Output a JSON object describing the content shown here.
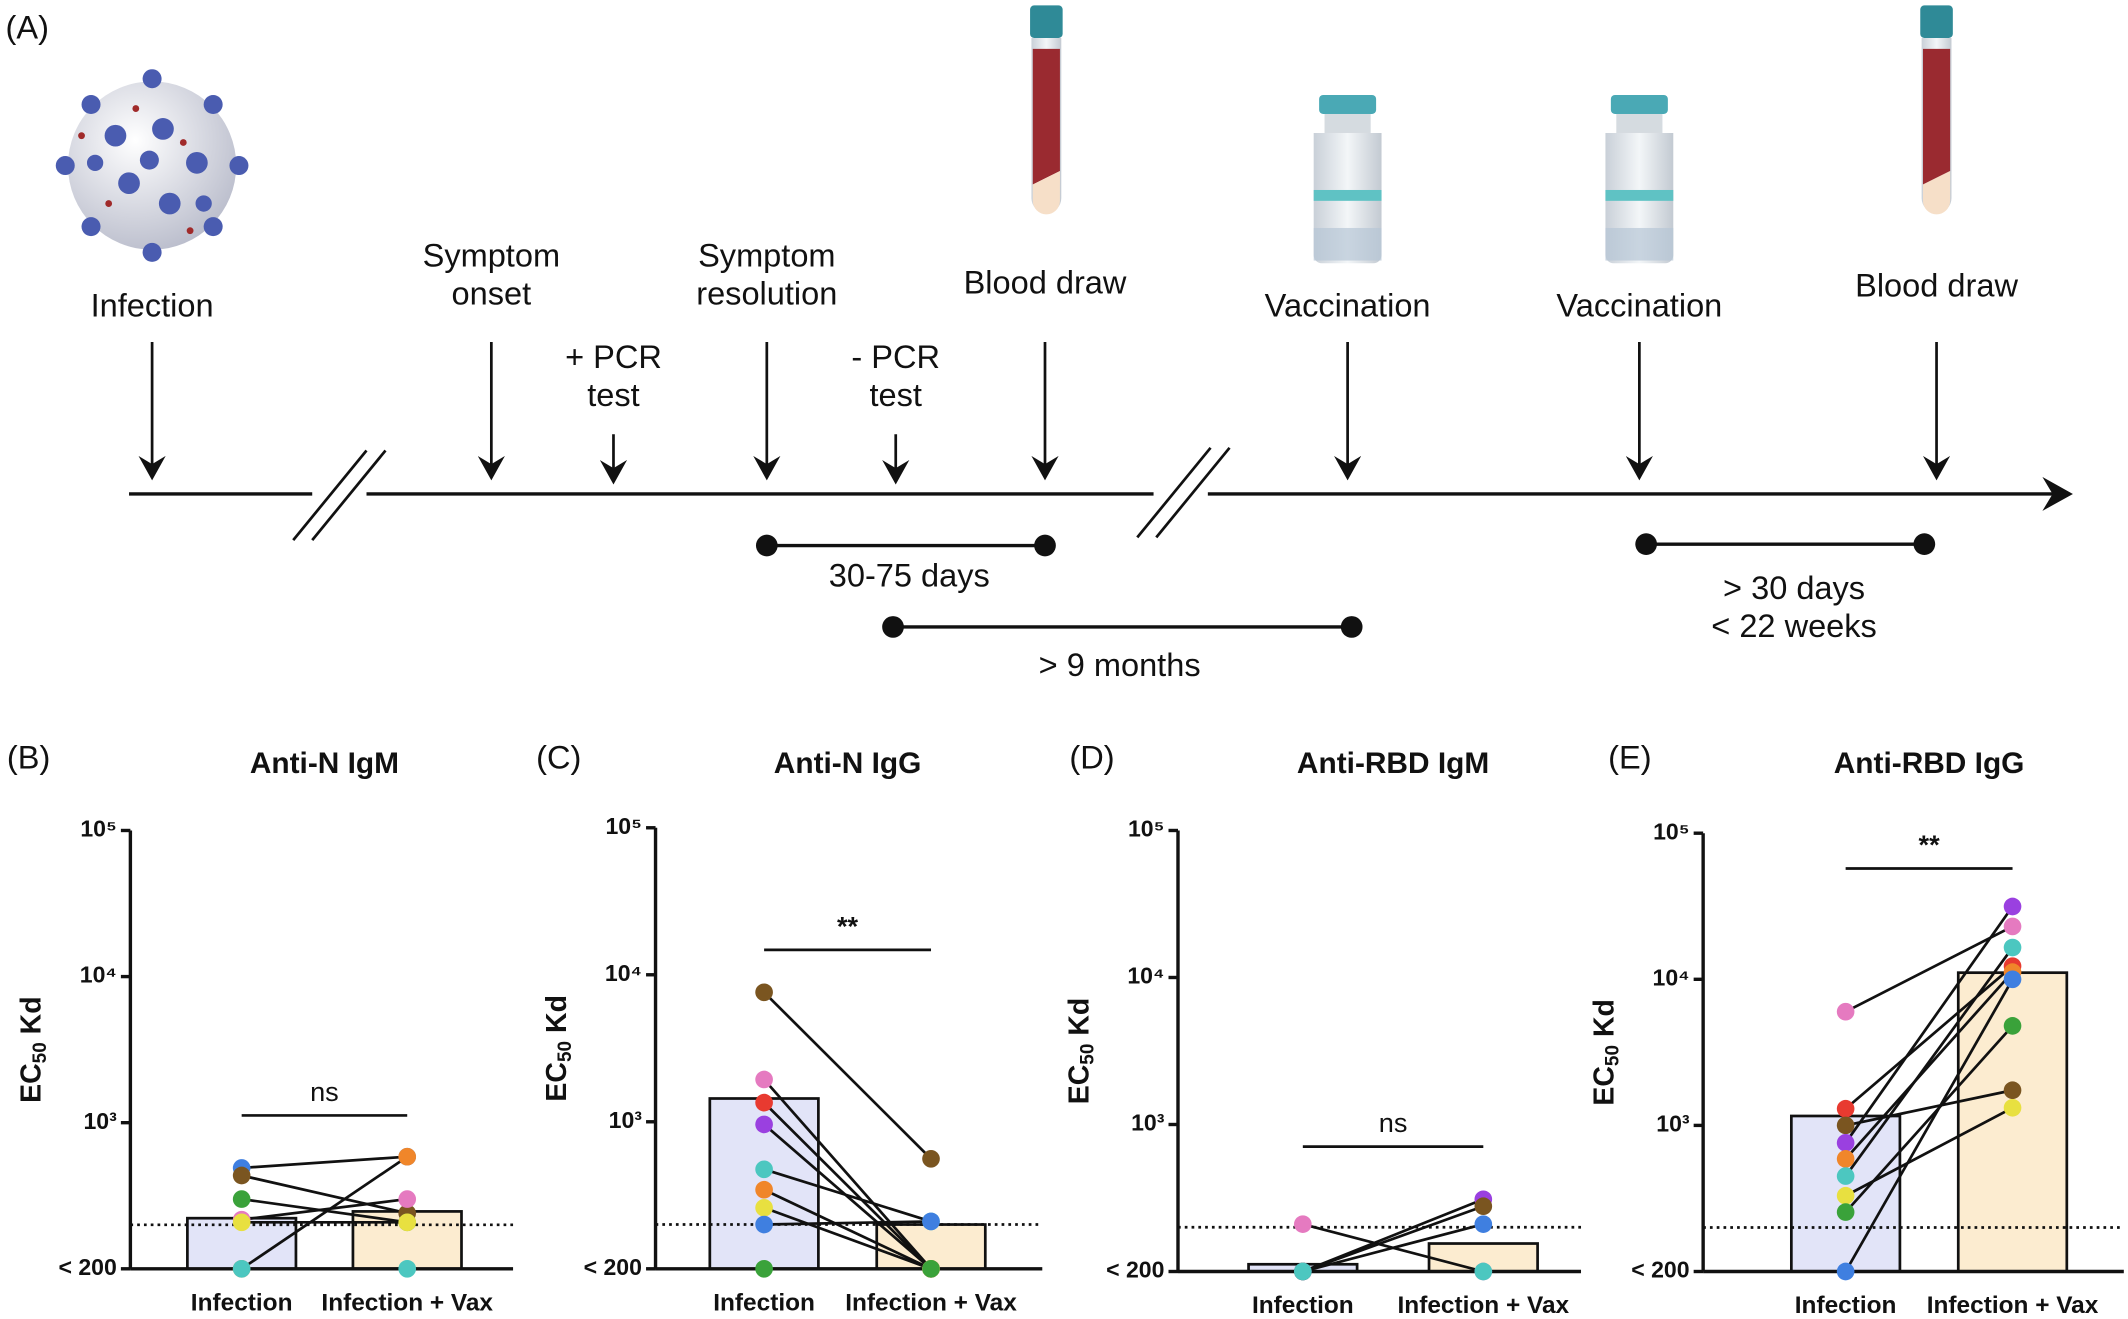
{
  "timeline": {
    "panel": "(A)",
    "events": [
      {
        "label": [
          "Infection"
        ]
      },
      {
        "label": [
          "Symptom",
          "onset"
        ]
      },
      {
        "label": [
          "+ PCR",
          "test"
        ]
      },
      {
        "label": [
          "Symptom",
          "resolution"
        ]
      },
      {
        "label": [
          "- PCR",
          "test"
        ]
      },
      {
        "label": [
          "Blood draw"
        ]
      },
      {
        "label": [
          "Vaccination"
        ]
      },
      {
        "label": [
          "Vaccination"
        ]
      },
      {
        "label": [
          "Blood draw"
        ]
      }
    ],
    "intervals": [
      {
        "label": [
          "30-75 days"
        ]
      },
      {
        "label": [
          "> 9 months"
        ]
      },
      {
        "label": [
          "> 30 days",
          "< 22 weeks"
        ]
      }
    ]
  },
  "chart_data": [
    {
      "type": "bar",
      "panel": "(B)",
      "title": "Anti-N IgM",
      "ylabel": {
        "text": "EC",
        "sub": "50",
        "unit": " Kd"
      },
      "categories": [
        "Infection",
        "Infection + Vax"
      ],
      "values": [
        222,
        247
      ],
      "bar_colors": [
        "#e2e4f8",
        "#fcecd0"
      ],
      "log_scale": true,
      "threshold": 200,
      "ylim": [
        100,
        100000
      ],
      "yticks": [
        {
          "value": 100,
          "label": "< 200"
        },
        {
          "value": 1000,
          "label": "10³"
        },
        {
          "value": 10000,
          "label": "10⁴"
        },
        {
          "value": 100000,
          "label": "10⁵"
        }
      ],
      "annotation": "ns",
      "series": [
        {
          "color": "#3f7fe0",
          "values": [
            490,
            585
          ]
        },
        {
          "color": "#7a5520",
          "values": [
            435,
            240
          ]
        },
        {
          "color": "#3aa23a",
          "values": [
            300,
            208
          ]
        },
        {
          "color": "#e57ac0",
          "values": [
            217,
            300
          ]
        },
        {
          "color": "#e8e040",
          "values": [
            208,
            208
          ]
        },
        {
          "color": "#f0862a",
          "values": [
            100,
            585
          ]
        },
        {
          "color": "#4cc7c0",
          "values": [
            100,
            100
          ]
        }
      ]
    },
    {
      "type": "bar",
      "panel": "(C)",
      "title": "Anti-N IgG",
      "ylabel": {
        "text": "EC",
        "sub": "50",
        "unit": " Kd"
      },
      "categories": [
        "Infection",
        "Infection + Vax"
      ],
      "values": [
        1440,
        200
      ],
      "bar_colors": [
        "#e2e4f8",
        "#fcecd0"
      ],
      "log_scale": true,
      "threshold": 200,
      "ylim": [
        100,
        100000
      ],
      "yticks": [
        {
          "value": 100,
          "label": "< 200"
        },
        {
          "value": 1000,
          "label": "10³"
        },
        {
          "value": 10000,
          "label": "10⁴"
        },
        {
          "value": 100000,
          "label": "10⁵"
        }
      ],
      "annotation": "**",
      "series": [
        {
          "color": "#7a5520",
          "values": [
            7600,
            560
          ]
        },
        {
          "color": "#e57ac0",
          "values": [
            1940,
            100
          ]
        },
        {
          "color": "#e83a30",
          "values": [
            1350,
            100
          ]
        },
        {
          "color": "#9a40e0",
          "values": [
            960,
            100
          ]
        },
        {
          "color": "#4cc7c0",
          "values": [
            475,
            210
          ]
        },
        {
          "color": "#f0862a",
          "values": [
            345,
            100
          ]
        },
        {
          "color": "#e8e040",
          "values": [
            260,
            100
          ]
        },
        {
          "color": "#3f7fe0",
          "values": [
            200,
            210
          ]
        },
        {
          "color": "#3aa23a",
          "values": [
            100,
            100
          ]
        }
      ]
    },
    {
      "type": "bar",
      "panel": "(D)",
      "title": "Anti-RBD IgM",
      "ylabel": {
        "text": "EC",
        "sub": "50",
        "unit": " Kd"
      },
      "categories": [
        "Infection",
        "Infection + Vax"
      ],
      "values": [
        112,
        155
      ],
      "bar_colors": [
        "#e2e4f8",
        "#fcecd0"
      ],
      "log_scale": true,
      "threshold": 200,
      "ylim": [
        100,
        100000
      ],
      "yticks": [
        {
          "value": 100,
          "label": "< 200"
        },
        {
          "value": 1000,
          "label": "10³"
        },
        {
          "value": 10000,
          "label": "10⁴"
        },
        {
          "value": 100000,
          "label": "10⁵"
        }
      ],
      "annotation": "ns",
      "series": [
        {
          "color": "#e57ac0",
          "values": [
            210,
            100
          ]
        },
        {
          "color": "#3f7fe0",
          "values": [
            100,
            210
          ]
        },
        {
          "color": "#9a40e0",
          "values": [
            100,
            310
          ]
        },
        {
          "color": "#7a5520",
          "values": [
            100,
            278
          ]
        },
        {
          "color": "#4cc7c0",
          "values": [
            100,
            100
          ]
        }
      ]
    },
    {
      "type": "bar",
      "panel": "(E)",
      "title": "Anti-RBD IgG",
      "ylabel": {
        "text": "EC",
        "sub": "50",
        "unit": " Kd"
      },
      "categories": [
        "Infection",
        "Infection + Vax"
      ],
      "values": [
        1160,
        11100
      ],
      "bar_colors": [
        "#e2e4f8",
        "#fcecd0"
      ],
      "log_scale": true,
      "threshold": 200,
      "ylim": [
        100,
        100000
      ],
      "yticks": [
        {
          "value": 100,
          "label": "< 200"
        },
        {
          "value": 1000,
          "label": "10³"
        },
        {
          "value": 10000,
          "label": "10⁴"
        },
        {
          "value": 100000,
          "label": "10⁵"
        }
      ],
      "annotation": "**",
      "series": [
        {
          "color": "#e57ac0",
          "values": [
            6000,
            23000
          ]
        },
        {
          "color": "#e83a30",
          "values": [
            1300,
            12300
          ]
        },
        {
          "color": "#7a5520",
          "values": [
            1000,
            1740
          ]
        },
        {
          "color": "#9a40e0",
          "values": [
            760,
            31500
          ]
        },
        {
          "color": "#f0862a",
          "values": [
            590,
            11200
          ]
        },
        {
          "color": "#4cc7c0",
          "values": [
            450,
            16500
          ]
        },
        {
          "color": "#e8e040",
          "values": [
            330,
            1320
          ]
        },
        {
          "color": "#3aa23a",
          "values": [
            255,
            4800
          ]
        },
        {
          "color": "#3f7fe0",
          "values": [
            100,
            10000
          ]
        }
      ]
    }
  ]
}
